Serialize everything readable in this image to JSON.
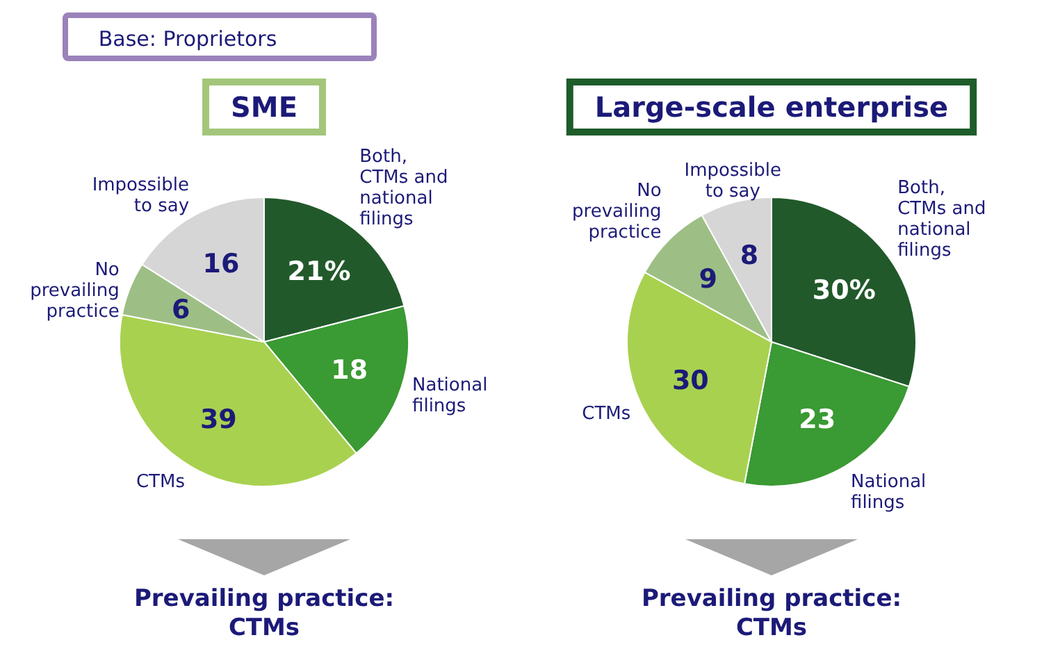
{
  "chart_data": [
    {
      "type": "pie",
      "title": "SME",
      "categories": [
        "Both, CTMs and national filings",
        "National filings",
        "CTMs",
        "No prevailing practice",
        "Impossible to say"
      ],
      "values": [
        21,
        18,
        39,
        6,
        16
      ],
      "value_labels": [
        "21%",
        "18",
        "39",
        "6",
        "16"
      ],
      "colors": [
        "#22592b",
        "#3a9a33",
        "#a8d150",
        "#9dbf85",
        "#d6d6d6"
      ],
      "annotations": [
        "Base: Proprietors",
        "Prevailing practice: CTMs"
      ]
    },
    {
      "type": "pie",
      "title": "Large-scale enterprise",
      "categories": [
        "Both, CTMs and national filings",
        "National filings",
        "CTMs",
        "No prevailing practice",
        "Impossible to say"
      ],
      "values": [
        30,
        23,
        30,
        9,
        8
      ],
      "value_labels": [
        "30%",
        "23",
        "30",
        "9",
        "8"
      ],
      "colors": [
        "#22592b",
        "#3a9a33",
        "#a8d150",
        "#9dbf85",
        "#d6d6d6"
      ],
      "annotations": [
        "Prevailing practice: CTMs"
      ]
    }
  ]
}
